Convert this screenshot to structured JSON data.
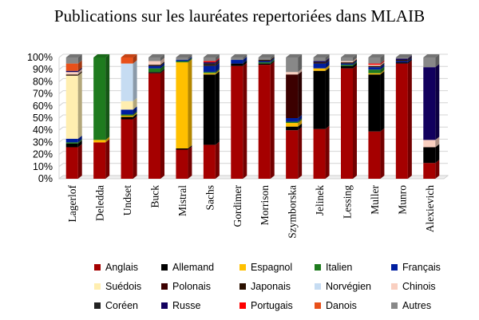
{
  "chart_data": {
    "type": "bar",
    "stacked": true,
    "percent": true,
    "title": "Publications sur les lauréates repertoriées dans MLAIB",
    "ylim": [
      0,
      100
    ],
    "yticks": [
      "0%",
      "10%",
      "20%",
      "30%",
      "40%",
      "50%",
      "60%",
      "70%",
      "80%",
      "90%",
      "100%"
    ],
    "grid": true,
    "legend_position": "bottom",
    "categories": [
      "Lagerlof",
      "Deledda",
      "Undset",
      "Buck",
      "Mistral",
      "Sachs",
      "Gordimer",
      "Morrison",
      "Szymborska",
      "Jelinek",
      "Lessing",
      "Muller",
      "Munro",
      "Alexievich"
    ],
    "series": [
      {
        "name": "Anglais",
        "color": "#a50000",
        "values": [
          26,
          30,
          49,
          87,
          24,
          28,
          93,
          94,
          40,
          41,
          91,
          39,
          95,
          13
        ]
      },
      {
        "name": "Allemand",
        "color": "#000000",
        "values": [
          3,
          0,
          2,
          1,
          1,
          58,
          2,
          1,
          3,
          48,
          2,
          47,
          1,
          13
        ]
      },
      {
        "name": "Espagnol",
        "color": "#ffc000",
        "values": [
          0,
          2,
          1,
          0,
          71,
          1,
          0,
          0,
          3,
          2,
          0,
          1,
          0,
          0
        ]
      },
      {
        "name": "Italien",
        "color": "#1e7b1e",
        "values": [
          1,
          68,
          1,
          3,
          1,
          1,
          0,
          1,
          1,
          0,
          1,
          3,
          0,
          0
        ]
      },
      {
        "name": "Français",
        "color": "#001ea0",
        "values": [
          3,
          0,
          4,
          2,
          1,
          5,
          3,
          1,
          3,
          4,
          1,
          2,
          1,
          0
        ]
      },
      {
        "name": "Suédois",
        "color": "#ffeeb0",
        "values": [
          52,
          0,
          7,
          0,
          0,
          0,
          0,
          0,
          0,
          0,
          0,
          0,
          0,
          0
        ]
      },
      {
        "name": "Polonais",
        "color": "#3c0000",
        "values": [
          0,
          0,
          0,
          0,
          0,
          0,
          0,
          0,
          36,
          0,
          0,
          0,
          0,
          0
        ]
      },
      {
        "name": "Japonais",
        "color": "#2b1000",
        "values": [
          1,
          0,
          0,
          1,
          0,
          1,
          0,
          1,
          0,
          1,
          1,
          1,
          1,
          0
        ]
      },
      {
        "name": "Norvégien",
        "color": "#c6dcf2",
        "values": [
          0,
          0,
          31,
          0,
          0,
          0,
          0,
          0,
          0,
          0,
          0,
          0,
          0,
          0
        ]
      },
      {
        "name": "Chinois",
        "color": "#f9cfc0",
        "values": [
          2,
          0,
          0,
          3,
          0,
          0,
          0,
          0,
          2,
          0,
          1,
          1,
          0,
          6
        ]
      },
      {
        "name": "Coréen",
        "color": "#222222",
        "values": [
          0,
          0,
          0,
          0,
          0,
          1,
          0,
          0,
          0,
          0,
          0,
          0,
          0,
          0
        ]
      },
      {
        "name": "Russe",
        "color": "#12005e",
        "values": [
          1,
          0,
          0,
          0,
          0,
          1,
          0,
          0,
          0,
          1,
          0,
          0,
          1,
          60
        ]
      },
      {
        "name": "Portugais",
        "color": "#ff0000",
        "values": [
          0,
          0,
          0,
          0,
          0,
          1,
          0,
          0,
          0,
          0,
          0,
          1,
          0,
          0
        ]
      },
      {
        "name": "Danois",
        "color": "#e8501a",
        "values": [
          6,
          0,
          5,
          0,
          0,
          0,
          0,
          0,
          0,
          0,
          0,
          0,
          0,
          0
        ]
      },
      {
        "name": "Autres",
        "color": "#888888",
        "values": [
          5,
          0,
          0,
          3,
          2,
          3,
          2,
          2,
          12,
          3,
          3,
          5,
          1,
          8
        ]
      }
    ]
  }
}
